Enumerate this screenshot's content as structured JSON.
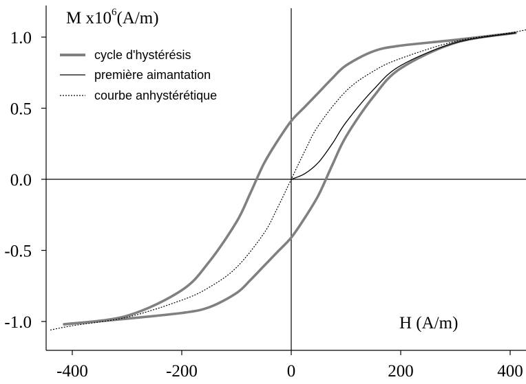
{
  "chart_data": {
    "type": "line",
    "xlabel": "H (A/m)",
    "ylabel_main": "M x10",
    "ylabel_exp": "6",
    "ylabel_unit": "(A/m)",
    "xlim": [
      -440,
      440
    ],
    "ylim": [
      -1.2,
      1.2
    ],
    "x_ticks": [
      -400,
      -200,
      0,
      200,
      400
    ],
    "y_ticks": [
      1.0,
      0.5,
      0.0,
      -0.5,
      -1.0
    ],
    "x_tick_labels": [
      "-400",
      "-200",
      "0",
      "200",
      "400"
    ],
    "y_tick_labels": [
      "1.0",
      "0.5",
      "0.0",
      "-0.5",
      "-1.0"
    ],
    "grid": false,
    "legend_position": "top-left",
    "colors": {
      "cycle": "#808080",
      "first": "#000000",
      "anhyst": "#000000"
    },
    "series": [
      {
        "name": "cycle d'hystérésis",
        "style": "thick-gray",
        "x": [
          -415,
          -300,
          -200,
          -150,
          -100,
          -75,
          -50,
          -25,
          0,
          25,
          50,
          75,
          100,
          150,
          200,
          300,
          410
        ],
        "y": [
          -1.02,
          -0.98,
          -0.94,
          -0.9,
          -0.8,
          -0.71,
          -0.61,
          -0.51,
          -0.41,
          -0.27,
          -0.11,
          0.1,
          0.3,
          0.58,
          0.78,
          0.96,
          1.03
        ]
      },
      {
        "name": "",
        "style": "thick-gray",
        "x": [
          410,
          300,
          200,
          150,
          100,
          75,
          50,
          25,
          0,
          -25,
          -50,
          -75,
          -100,
          -150,
          -200,
          -300,
          -415
        ],
        "y": [
          1.03,
          0.98,
          0.94,
          0.9,
          0.8,
          0.71,
          0.61,
          0.51,
          0.41,
          0.27,
          0.11,
          -0.1,
          -0.3,
          -0.58,
          -0.78,
          -0.96,
          -1.02
        ]
      },
      {
        "name": "première aimantation",
        "style": "thin-solid",
        "x": [
          0,
          25,
          50,
          75,
          100,
          150,
          200,
          300,
          410
        ],
        "y": [
          0.0,
          0.04,
          0.12,
          0.25,
          0.4,
          0.63,
          0.8,
          0.96,
          1.03
        ]
      },
      {
        "name": "courbe anhystérétique",
        "style": "dotted",
        "x": [
          -440,
          -400,
          -300,
          -200,
          -150,
          -100,
          -50,
          -25,
          0,
          25,
          50,
          100,
          150,
          200,
          300,
          400,
          440
        ],
        "y": [
          -1.06,
          -1.03,
          -0.97,
          -0.85,
          -0.76,
          -0.62,
          -0.38,
          -0.2,
          0.0,
          0.2,
          0.38,
          0.62,
          0.76,
          0.85,
          0.97,
          1.03,
          1.06
        ]
      }
    ]
  }
}
